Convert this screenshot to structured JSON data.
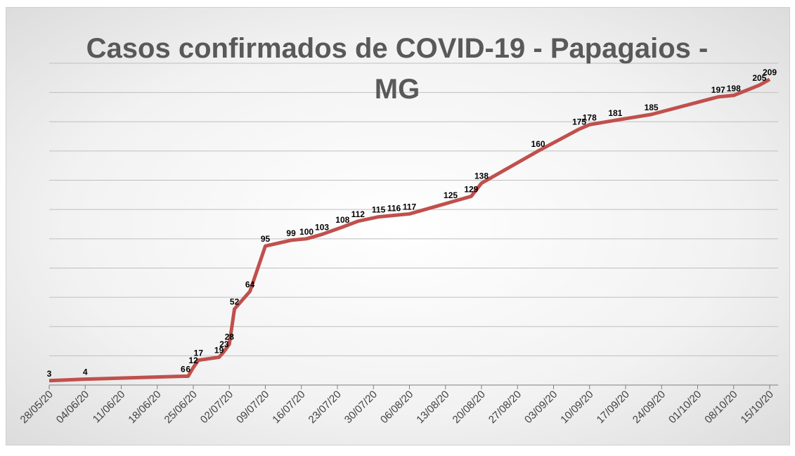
{
  "chart_data": {
    "type": "line",
    "title": "Casos confirmados de COVID-19 - Papagaios -MG",
    "x": [
      "28/05/20",
      "04/06/20",
      "23/06/20",
      "24/06/20",
      "25/06/20",
      "26/06/20",
      "30/06/20",
      "01/07/20",
      "02/07/20",
      "03/07/20",
      "06/07/20",
      "09/07/20",
      "14/07/20",
      "17/07/20",
      "20/07/20",
      "24/07/20",
      "27/07/20",
      "31/07/20",
      "03/08/20",
      "06/08/20",
      "14/08/20",
      "18/08/20",
      "20/08/20",
      "31/08/20",
      "08/09/20",
      "10/09/20",
      "15/09/20",
      "22/09/20",
      "05/10/20",
      "08/10/20",
      "13/10/20",
      "15/10/20"
    ],
    "series": [
      {
        "name": "Casos",
        "color": "#c0504d",
        "values": [
          3,
          4,
          6,
          6,
          12,
          17,
          19,
          23,
          28,
          52,
          64,
          95,
          99,
          100,
          103,
          108,
          112,
          115,
          116,
          117,
          125,
          129,
          138,
          160,
          175,
          178,
          181,
          185,
          197,
          198,
          205,
          209
        ]
      }
    ],
    "xlim": [
      "28/05/20",
      "15/10/20"
    ],
    "xticks": [
      "28/05/20",
      "04/06/20",
      "11/06/20",
      "18/06/20",
      "25/06/20",
      "02/07/20",
      "09/07/20",
      "16/07/20",
      "23/07/20",
      "30/07/20",
      "06/08/20",
      "13/08/20",
      "20/08/20",
      "27/08/20",
      "03/09/20",
      "10/09/20",
      "17/09/20",
      "24/09/20",
      "01/10/20",
      "08/10/20",
      "15/10/20"
    ],
    "ylim": [
      0,
      220
    ],
    "yticks": [
      0,
      20,
      40,
      60,
      80,
      100,
      120,
      140,
      160,
      180,
      200,
      220
    ],
    "grid": true
  }
}
